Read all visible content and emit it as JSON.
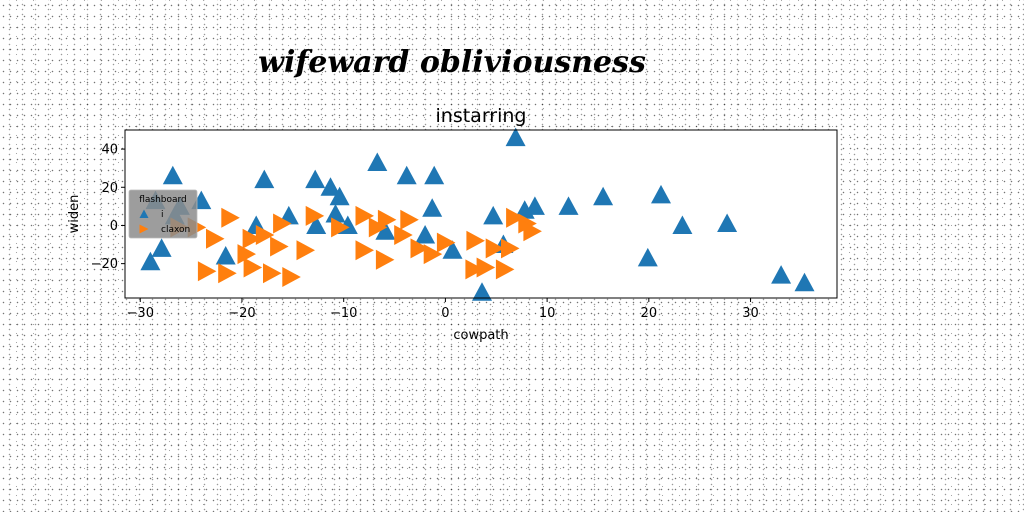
{
  "figure": {
    "suptitle": "wifeward obliviousness"
  },
  "chart_data": {
    "type": "scatter",
    "title": "instarring",
    "xlabel": "cowpath",
    "ylabel": "widen",
    "xlim": [
      -31.5,
      38.5
    ],
    "ylim": [
      -38,
      50
    ],
    "xticks": [
      -30,
      -20,
      -10,
      0,
      10,
      20,
      30
    ],
    "xtick_labels": [
      "−30",
      "−20",
      "−10",
      "0",
      "10",
      "20",
      "30"
    ],
    "yticks": [
      -20,
      0,
      20,
      40
    ],
    "ytick_labels": [
      "−20",
      "0",
      "20",
      "40"
    ],
    "grid": false,
    "legend": {
      "title": "flashboard",
      "placement": "center-left"
    },
    "series": [
      {
        "name": "i",
        "marker": "triangle-up",
        "color": "#1f77b4",
        "points": [
          [
            6.9,
            46
          ],
          [
            -6.7,
            33
          ],
          [
            -26.8,
            26
          ],
          [
            -17.8,
            24
          ],
          [
            -12.8,
            24
          ],
          [
            -3.8,
            26
          ],
          [
            -1.1,
            26
          ],
          [
            -11.3,
            20
          ],
          [
            -10.4,
            15
          ],
          [
            -24.0,
            13
          ],
          [
            -28.5,
            13
          ],
          [
            -26.1,
            10
          ],
          [
            -1.3,
            9
          ],
          [
            -10.8,
            6
          ],
          [
            -15.4,
            5
          ],
          [
            -12.7,
            0
          ],
          [
            -9.6,
            0
          ],
          [
            -18.6,
            0
          ],
          [
            -2.0,
            -5
          ],
          [
            -5.9,
            -3
          ],
          [
            0.7,
            -13
          ],
          [
            -21.6,
            -16
          ],
          [
            -29.0,
            -19
          ],
          [
            -27.9,
            -12
          ],
          [
            4.7,
            5
          ],
          [
            7.8,
            8
          ],
          [
            8.8,
            10
          ],
          [
            12.1,
            10
          ],
          [
            15.5,
            15
          ],
          [
            21.2,
            16
          ],
          [
            23.3,
            0
          ],
          [
            27.7,
            1
          ],
          [
            5.7,
            -10
          ],
          [
            19.9,
            -17
          ],
          [
            33.0,
            -26
          ],
          [
            35.3,
            -30
          ],
          [
            3.6,
            -35
          ],
          [
            -26.6,
            5
          ]
        ]
      },
      {
        "name": "claxon",
        "marker": "triangle-right",
        "color": "#ff7f0e",
        "points": [
          [
            -21.2,
            4
          ],
          [
            -16.1,
            1
          ],
          [
            -12.9,
            5
          ],
          [
            -8.0,
            5
          ],
          [
            -5.8,
            3
          ],
          [
            -3.6,
            3
          ],
          [
            6.8,
            4
          ],
          [
            8.0,
            1
          ],
          [
            -22.7,
            -7
          ],
          [
            -19.1,
            -7
          ],
          [
            -17.8,
            -5
          ],
          [
            -16.4,
            -11
          ],
          [
            -19.6,
            -15
          ],
          [
            -13.8,
            -13
          ],
          [
            -8.0,
            -13
          ],
          [
            -6.0,
            -18
          ],
          [
            -2.6,
            -12
          ],
          [
            -1.3,
            -15
          ],
          [
            0.0,
            -9
          ],
          [
            2.9,
            -8
          ],
          [
            4.8,
            -12
          ],
          [
            6.3,
            -12
          ],
          [
            3.9,
            -22
          ],
          [
            2.8,
            -23
          ],
          [
            5.8,
            -23
          ],
          [
            -23.5,
            -24
          ],
          [
            -21.5,
            -25
          ],
          [
            -19.0,
            -22
          ],
          [
            -17.1,
            -25
          ],
          [
            -15.2,
            -27
          ],
          [
            -24.5,
            -1
          ],
          [
            -6.7,
            -1
          ],
          [
            -4.2,
            -5
          ],
          [
            8.5,
            -3
          ],
          [
            -10.4,
            -1
          ],
          [
            -26.2,
            -1
          ]
        ]
      }
    ]
  }
}
